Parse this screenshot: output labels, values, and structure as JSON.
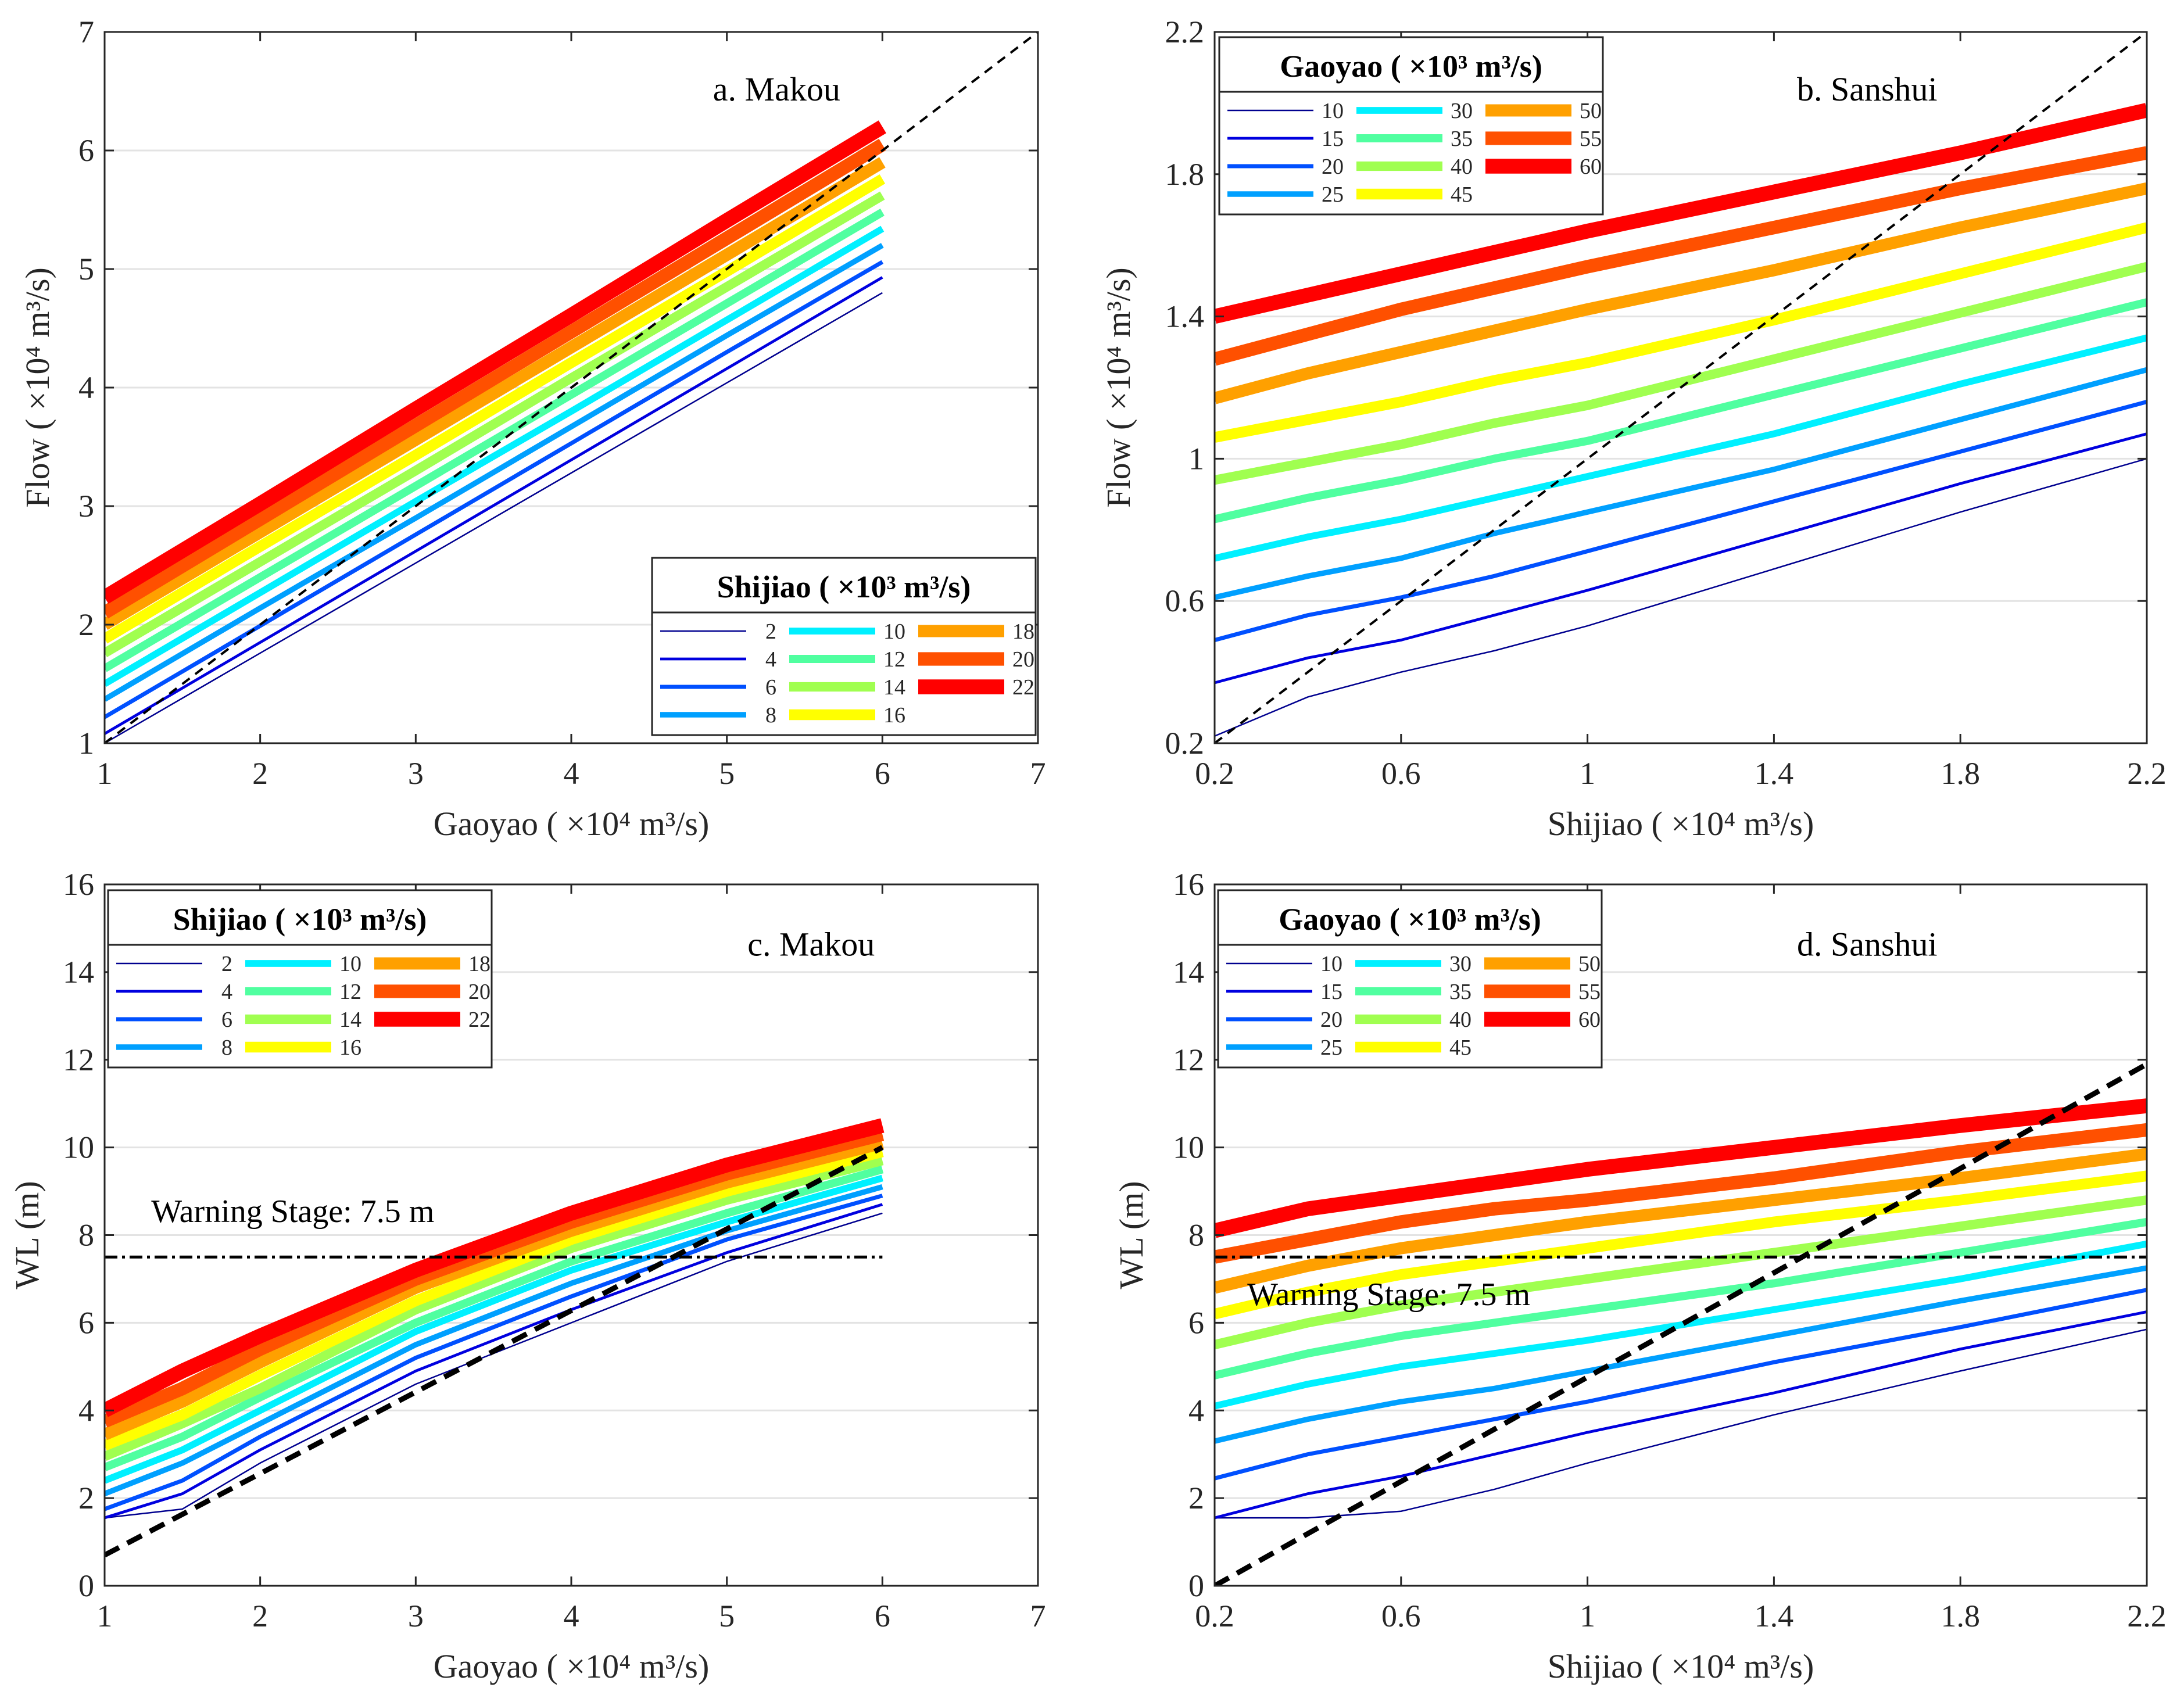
{
  "chart_data": [
    {
      "type": "line",
      "panel": "a",
      "title": "a. Makou",
      "xlabel": "Gaoyao ( ×10⁴ m³/s)",
      "ylabel": "Flow ( ×10⁴ m³/s)",
      "xlim": [
        1,
        7
      ],
      "ylim": [
        1,
        7
      ],
      "xticks": [
        "1",
        "2",
        "3",
        "4",
        "5",
        "6",
        "7"
      ],
      "yticks": [
        "1",
        "2",
        "3",
        "4",
        "5",
        "6",
        "7"
      ],
      "xtick_values": [
        1,
        2,
        3,
        4,
        5,
        6,
        7
      ],
      "ytick_values": [
        1,
        2,
        3,
        4,
        5,
        6,
        7
      ],
      "grid": "horizontal",
      "legend": {
        "title": "Shijiao ( ×10³ m³/s)",
        "placement": "bottom-right"
      },
      "x": [
        1,
        2,
        3,
        4,
        5,
        6
      ],
      "series": [
        {
          "name": "2",
          "color": "#00008f",
          "values": [
            1.0,
            1.76,
            2.52,
            3.28,
            4.04,
            4.8
          ]
        },
        {
          "name": "4",
          "color": "#0000df",
          "values": [
            1.08,
            1.85,
            2.62,
            3.39,
            4.16,
            4.93
          ]
        },
        {
          "name": "6",
          "color": "#0050ff",
          "values": [
            1.22,
            1.99,
            2.76,
            3.53,
            4.3,
            5.06
          ]
        },
        {
          "name": "8",
          "color": "#00a0ff",
          "values": [
            1.37,
            2.14,
            2.9,
            3.67,
            4.44,
            5.2
          ]
        },
        {
          "name": "10",
          "color": "#00f0ff",
          "values": [
            1.5,
            2.27,
            3.04,
            3.8,
            4.57,
            5.34
          ]
        },
        {
          "name": "12",
          "color": "#50ffa0",
          "values": [
            1.63,
            2.4,
            3.17,
            3.94,
            4.71,
            5.48
          ]
        },
        {
          "name": "14",
          "color": "#a0ff50",
          "values": [
            1.76,
            2.53,
            3.3,
            4.08,
            4.85,
            5.62
          ]
        },
        {
          "name": "16",
          "color": "#ffff00",
          "values": [
            1.88,
            2.66,
            3.43,
            4.21,
            4.98,
            5.76
          ]
        },
        {
          "name": "18",
          "color": "#ffa000",
          "values": [
            2.0,
            2.78,
            3.56,
            4.34,
            5.12,
            5.9
          ]
        },
        {
          "name": "20",
          "color": "#ff5000",
          "values": [
            2.1,
            2.89,
            3.68,
            4.47,
            5.26,
            6.05
          ]
        },
        {
          "name": "22",
          "color": "#ff0000",
          "values": [
            2.23,
            3.02,
            3.82,
            4.61,
            5.41,
            6.2
          ]
        }
      ],
      "reference_line": {
        "style": "dashed",
        "x": [
          1,
          7
        ],
        "y": [
          1,
          7
        ]
      }
    },
    {
      "type": "line",
      "panel": "b",
      "title": "b. Sanshui",
      "xlabel": "Shijiao ( ×10⁴ m³/s)",
      "ylabel": "Flow ( ×10⁴ m³/s)",
      "xlim": [
        0.2,
        2.2
      ],
      "ylim": [
        0.2,
        2.2
      ],
      "xticks": [
        "0.2",
        "0.6",
        "1",
        "1.4",
        "1.8",
        "2.2"
      ],
      "yticks": [
        "0.2",
        "0.6",
        "1",
        "1.4",
        "1.8",
        "2.2"
      ],
      "xtick_values": [
        0.2,
        0.6,
        1,
        1.4,
        1.8,
        2.2
      ],
      "ytick_values": [
        0.2,
        0.6,
        1,
        1.4,
        1.8,
        2.2
      ],
      "grid": "horizontal",
      "legend": {
        "title": "Gaoyao ( ×10³ m³/s)",
        "placement": "top-left"
      },
      "x": [
        0.2,
        0.4,
        0.6,
        0.8,
        1.0,
        1.4,
        1.8,
        2.2
      ],
      "series": [
        {
          "name": "10",
          "color": "#00008f",
          "values": [
            0.22,
            0.33,
            0.4,
            0.46,
            0.53,
            0.69,
            0.85,
            1.0
          ]
        },
        {
          "name": "15",
          "color": "#0000df",
          "values": [
            0.37,
            0.44,
            0.49,
            0.56,
            0.63,
            0.78,
            0.93,
            1.07
          ]
        },
        {
          "name": "20",
          "color": "#0050ff",
          "values": [
            0.49,
            0.56,
            0.61,
            0.67,
            0.74,
            0.88,
            1.02,
            1.16
          ]
        },
        {
          "name": "25",
          "color": "#00a0ff",
          "values": [
            0.61,
            0.67,
            0.72,
            0.79,
            0.85,
            0.97,
            1.11,
            1.25
          ]
        },
        {
          "name": "30",
          "color": "#00f0ff",
          "values": [
            0.72,
            0.78,
            0.83,
            0.89,
            0.95,
            1.07,
            1.21,
            1.34
          ]
        },
        {
          "name": "35",
          "color": "#50ffa0",
          "values": [
            0.83,
            0.89,
            0.94,
            1.0,
            1.05,
            1.18,
            1.31,
            1.44
          ]
        },
        {
          "name": "40",
          "color": "#a0ff50",
          "values": [
            0.94,
            0.99,
            1.04,
            1.1,
            1.15,
            1.28,
            1.41,
            1.54
          ]
        },
        {
          "name": "45",
          "color": "#ffff00",
          "values": [
            1.06,
            1.11,
            1.16,
            1.22,
            1.27,
            1.39,
            1.52,
            1.65
          ]
        },
        {
          "name": "50",
          "color": "#ffa000",
          "values": [
            1.17,
            1.24,
            1.3,
            1.36,
            1.42,
            1.53,
            1.65,
            1.76
          ]
        },
        {
          "name": "55",
          "color": "#ff5000",
          "values": [
            1.28,
            1.35,
            1.42,
            1.48,
            1.54,
            1.65,
            1.76,
            1.86
          ]
        },
        {
          "name": "60",
          "color": "#ff0000",
          "values": [
            1.4,
            1.46,
            1.52,
            1.58,
            1.64,
            1.75,
            1.86,
            1.98
          ]
        }
      ],
      "reference_line": {
        "style": "dashed",
        "x": [
          0.2,
          2.2
        ],
        "y": [
          0.2,
          2.2
        ]
      }
    },
    {
      "type": "line",
      "panel": "c",
      "title": "c. Makou",
      "xlabel": "Gaoyao ( ×10⁴ m³/s)",
      "ylabel": "WL (m)",
      "xlim": [
        1,
        7
      ],
      "ylim": [
        0,
        16
      ],
      "xticks": [
        "1",
        "2",
        "3",
        "4",
        "5",
        "6",
        "7"
      ],
      "yticks": [
        "0",
        "2",
        "4",
        "6",
        "8",
        "10",
        "12",
        "14",
        "16"
      ],
      "xtick_values": [
        1,
        2,
        3,
        4,
        5,
        6,
        7
      ],
      "ytick_values": [
        0,
        2,
        4,
        6,
        8,
        10,
        12,
        14,
        16
      ],
      "grid": "horizontal",
      "legend": {
        "title": "Shijiao ( ×10³ m³/s)",
        "placement": "top-left"
      },
      "x": [
        1,
        1.5,
        2,
        3,
        4,
        5,
        6
      ],
      "series": [
        {
          "name": "2",
          "color": "#00008f",
          "values": [
            1.55,
            1.75,
            2.8,
            4.6,
            6.0,
            7.4,
            8.5
          ]
        },
        {
          "name": "4",
          "color": "#0000df",
          "values": [
            1.55,
            2.1,
            3.1,
            4.9,
            6.3,
            7.6,
            8.7
          ]
        },
        {
          "name": "6",
          "color": "#0050ff",
          "values": [
            1.75,
            2.4,
            3.4,
            5.2,
            6.6,
            7.9,
            8.9
          ]
        },
        {
          "name": "8",
          "color": "#00a0ff",
          "values": [
            2.1,
            2.8,
            3.7,
            5.5,
            6.9,
            8.1,
            9.1
          ]
        },
        {
          "name": "10",
          "color": "#00f0ff",
          "values": [
            2.4,
            3.1,
            4.0,
            5.8,
            7.2,
            8.3,
            9.3
          ]
        },
        {
          "name": "12",
          "color": "#50ffa0",
          "values": [
            2.7,
            3.4,
            4.3,
            6.0,
            7.4,
            8.5,
            9.5
          ]
        },
        {
          "name": "14",
          "color": "#a0ff50",
          "values": [
            2.95,
            3.7,
            4.5,
            6.3,
            7.7,
            8.8,
            9.7
          ]
        },
        {
          "name": "16",
          "color": "#ffff00",
          "values": [
            3.2,
            3.9,
            4.8,
            6.5,
            7.9,
            9.0,
            9.9
          ]
        },
        {
          "name": "18",
          "color": "#ffa000",
          "values": [
            3.45,
            4.2,
            5.1,
            6.8,
            8.1,
            9.2,
            10.1
          ]
        },
        {
          "name": "20",
          "color": "#ff5000",
          "values": [
            3.75,
            4.5,
            5.4,
            7.0,
            8.3,
            9.4,
            10.3
          ]
        },
        {
          "name": "22",
          "color": "#ff0000",
          "values": [
            4.0,
            4.9,
            5.7,
            7.2,
            8.5,
            9.6,
            10.5
          ]
        }
      ],
      "reference_line": {
        "style": "dashed",
        "x": [
          1,
          6
        ],
        "y": [
          0.7,
          10.0
        ]
      },
      "warning_line": {
        "label": "Warning Stage: 7.5 m",
        "value": 7.5,
        "x": [
          1,
          6
        ]
      }
    },
    {
      "type": "line",
      "panel": "d",
      "title": "d. Sanshui",
      "xlabel": "Shijiao ( ×10⁴ m³/s)",
      "ylabel": "WL (m)",
      "xlim": [
        0.2,
        2.2
      ],
      "ylim": [
        0,
        16
      ],
      "xticks": [
        "0.2",
        "0.6",
        "1",
        "1.4",
        "1.8",
        "2.2"
      ],
      "yticks": [
        "0",
        "2",
        "4",
        "6",
        "8",
        "10",
        "12",
        "14",
        "16"
      ],
      "xtick_values": [
        0.2,
        0.6,
        1,
        1.4,
        1.8,
        2.2
      ],
      "ytick_values": [
        0,
        2,
        4,
        6,
        8,
        10,
        12,
        14,
        16
      ],
      "grid": "horizontal",
      "legend": {
        "title": "Gaoyao ( ×10³ m³/s)",
        "placement": "top-left"
      },
      "x": [
        0.2,
        0.4,
        0.6,
        0.8,
        1.0,
        1.4,
        1.8,
        2.2
      ],
      "series": [
        {
          "name": "10",
          "color": "#00008f",
          "values": [
            1.55,
            1.55,
            1.7,
            2.2,
            2.8,
            3.9,
            4.9,
            5.85
          ]
        },
        {
          "name": "15",
          "color": "#0000df",
          "values": [
            1.55,
            2.1,
            2.5,
            3.0,
            3.5,
            4.4,
            5.4,
            6.25
          ]
        },
        {
          "name": "20",
          "color": "#0050ff",
          "values": [
            2.45,
            3.0,
            3.4,
            3.8,
            4.2,
            5.1,
            5.9,
            6.75
          ]
        },
        {
          "name": "25",
          "color": "#00a0ff",
          "values": [
            3.3,
            3.8,
            4.2,
            4.5,
            4.9,
            5.7,
            6.5,
            7.25
          ]
        },
        {
          "name": "30",
          "color": "#00f0ff",
          "values": [
            4.1,
            4.6,
            5.0,
            5.3,
            5.6,
            6.3,
            7.0,
            7.8
          ]
        },
        {
          "name": "35",
          "color": "#50ffa0",
          "values": [
            4.8,
            5.3,
            5.7,
            6.0,
            6.3,
            6.9,
            7.6,
            8.3
          ]
        },
        {
          "name": "40",
          "color": "#a0ff50",
          "values": [
            5.5,
            6.0,
            6.4,
            6.7,
            7.0,
            7.6,
            8.2,
            8.8
          ]
        },
        {
          "name": "45",
          "color": "#ffff00",
          "values": [
            6.2,
            6.7,
            7.1,
            7.4,
            7.7,
            8.3,
            8.8,
            9.35
          ]
        },
        {
          "name": "50",
          "color": "#ffa000",
          "values": [
            6.8,
            7.3,
            7.7,
            8.0,
            8.3,
            8.8,
            9.3,
            9.85
          ]
        },
        {
          "name": "55",
          "color": "#ff5000",
          "values": [
            7.5,
            7.9,
            8.3,
            8.6,
            8.8,
            9.3,
            9.9,
            10.4
          ]
        },
        {
          "name": "60",
          "color": "#ff0000",
          "values": [
            8.1,
            8.6,
            8.9,
            9.2,
            9.5,
            10.0,
            10.5,
            10.95
          ]
        }
      ],
      "reference_line": {
        "style": "dashed",
        "x": [
          0.2,
          2.2
        ],
        "y": [
          0,
          11.9
        ]
      },
      "warning_line": {
        "label": "Warning Stage: 7.5 m",
        "value": 7.5,
        "x": [
          0.2,
          2.2
        ]
      }
    }
  ]
}
